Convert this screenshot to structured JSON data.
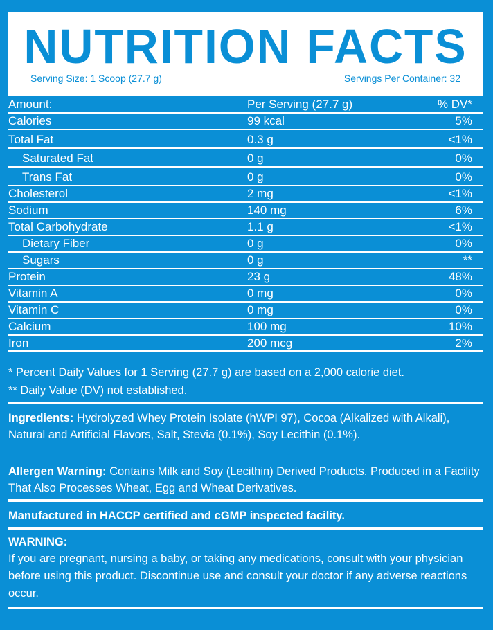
{
  "header": {
    "title": "NUTRITION FACTS",
    "serving_size": "Serving Size: 1 Scoop (27.7 g)",
    "servings_per_container": "Servings Per Container: 32"
  },
  "table": {
    "header": {
      "name": "Amount:",
      "value": "Per Serving (27.7 g)",
      "dv": "% DV*"
    },
    "rows": [
      {
        "name": "Calories",
        "value": "99 kcal",
        "dv": "5%"
      },
      {
        "name": "Total Fat",
        "value": "0.3 g",
        "dv": "<1%"
      },
      {
        "name": "Saturated Fat",
        "value": "0 g",
        "dv": "0%"
      },
      {
        "name": "Trans Fat",
        "value": "0 g",
        "dv": "0%"
      },
      {
        "name": "Cholesterol",
        "value": "2 mg",
        "dv": "<1%"
      },
      {
        "name": "Sodium",
        "value": "140 mg",
        "dv": "6%"
      },
      {
        "name": "Total Carbohydrate",
        "value": "1.1 g",
        "dv": "<1%"
      },
      {
        "name": "Dietary Fiber",
        "value": "0 g",
        "dv": "0%"
      },
      {
        "name": "Sugars",
        "value": "0 g",
        "dv": "**"
      },
      {
        "name": "Protein",
        "value": "23 g",
        "dv": "48%"
      },
      {
        "name": "Vitamin A",
        "value": "0 mg",
        "dv": "0%"
      },
      {
        "name": "Vitamin C",
        "value": "0 mg",
        "dv": "0%"
      },
      {
        "name": "Calcium",
        "value": "100 mg",
        "dv": "10%"
      },
      {
        "name": "Iron",
        "value": "200 mcg",
        "dv": "2%"
      }
    ]
  },
  "footnotes": {
    "dv_note": "* Percent Daily Values for 1 Serving (27.7 g) are based on a 2,000 calorie diet.",
    "not_established": "** Daily Value (DV) not established."
  },
  "ingredients": {
    "label": "Ingredients:",
    "text": " Hydrolyzed Whey Protein Isolate (hWPI 97), Cocoa (Alkalized with Alkali), Natural and Artificial Flavors, Salt, Stevia (0.1%), Soy Lecithin (0.1%)."
  },
  "allergen": {
    "label": "Allergen Warning:",
    "text": " Contains Milk and Soy (Lecithin) Derived Products. Produced in a Facility That Also Processes Wheat, Egg and Wheat Derivatives."
  },
  "manufactured": "Manufactured in HACCP certified and cGMP inspected facility.",
  "warning": {
    "label": "WARNING:",
    "text": "If you are pregnant, nursing a baby, or taking any medications, consult with your physician before using this product. Discontinue use and consult your doctor if any adverse reactions occur."
  },
  "colors": {
    "brand_blue": "#0a8fd6",
    "white": "#ffffff"
  }
}
